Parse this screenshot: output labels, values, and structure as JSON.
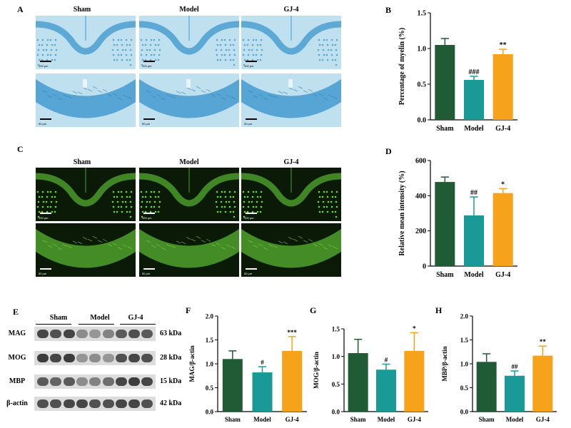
{
  "panels": {
    "A": {
      "letter": "A",
      "columns": [
        "Sham",
        "Model",
        "GJ-4"
      ],
      "scale_top": "100 μm",
      "scale_bottom": "50 μm"
    },
    "C": {
      "letter": "C",
      "columns": [
        "Sham",
        "Model",
        "GJ-4"
      ],
      "scale_top": "100 μm",
      "scale_bottom": "50 μm"
    },
    "E": {
      "letter": "E",
      "groups": [
        "Sham",
        "Model",
        "GJ-4"
      ],
      "rows": [
        {
          "protein": "MAG",
          "kda": "63 kDa"
        },
        {
          "protein": "MOG",
          "kda": "28 kDa"
        },
        {
          "protein": "MBP",
          "kda": "15 kDa"
        },
        {
          "protein": "β-actin",
          "kda": "42 kDa"
        }
      ]
    }
  },
  "colors": {
    "sham": "#1f5c36",
    "model": "#1a9a96",
    "gj4": "#f6a21a",
    "lfb_bg": "#bfe0ee",
    "lfb_tissue": "#4a9fd0",
    "fluor_bg": "#0b1a06",
    "fluor_tissue": "#4a9a2a"
  },
  "chart_data": [
    {
      "panel": "B",
      "type": "bar",
      "categories": [
        "Sham",
        "Model",
        "GJ-4"
      ],
      "values": [
        1.05,
        0.56,
        0.92
      ],
      "errors": [
        0.09,
        0.05,
        0.07
      ],
      "annotations": [
        "",
        "###",
        "**"
      ],
      "ylabel": "Percentage of myelin (%)",
      "ylim": [
        0,
        1.5
      ],
      "yticks": [
        0.0,
        0.5,
        1.0,
        1.5
      ],
      "tick_labels": [
        "0.0",
        "0.5",
        "1.0",
        "1.5"
      ]
    },
    {
      "panel": "D",
      "type": "bar",
      "categories": [
        "Sham",
        "Model",
        "GJ-4"
      ],
      "values": [
        478,
        288,
        415
      ],
      "errors": [
        28,
        105,
        25
      ],
      "annotations": [
        "",
        "##",
        "*"
      ],
      "ylabel": "Relative mean intensity (%)",
      "ylim": [
        0,
        600
      ],
      "yticks": [
        0,
        200,
        400,
        600
      ],
      "tick_labels": [
        "0",
        "200",
        "400",
        "600"
      ]
    },
    {
      "panel": "F",
      "type": "bar",
      "categories": [
        "Sham",
        "Model",
        "GJ-4"
      ],
      "values": [
        1.1,
        0.82,
        1.27
      ],
      "errors": [
        0.17,
        0.12,
        0.3
      ],
      "annotations": [
        "",
        "#",
        "***"
      ],
      "ylabel": "MAG/β-actin",
      "ylim": [
        0,
        2.0
      ],
      "yticks": [
        0.0,
        0.5,
        1.0,
        1.5,
        2.0
      ],
      "tick_labels": [
        "0.0",
        "0.5",
        "1.0",
        "1.5",
        "2.0"
      ]
    },
    {
      "panel": "G",
      "type": "bar",
      "categories": [
        "Sham",
        "Model",
        "GJ-4"
      ],
      "values": [
        1.06,
        0.76,
        1.1
      ],
      "errors": [
        0.25,
        0.1,
        0.33
      ],
      "annotations": [
        "",
        "#",
        "*"
      ],
      "ylabel": "MOG/β-actin",
      "ylim": [
        0,
        1.5
      ],
      "yticks": [
        0.0,
        0.5,
        1.0,
        1.5
      ],
      "tick_labels": [
        "0.0",
        "0.5",
        "1.0",
        "1.5"
      ]
    },
    {
      "panel": "H",
      "type": "bar",
      "categories": [
        "Sham",
        "Model",
        "GJ-4"
      ],
      "values": [
        1.04,
        0.75,
        1.17
      ],
      "errors": [
        0.17,
        0.1,
        0.2
      ],
      "annotations": [
        "",
        "##",
        "**"
      ],
      "ylabel": "MBP/β-actin",
      "ylim": [
        0,
        2.0
      ],
      "yticks": [
        0.0,
        0.5,
        1.0,
        1.5,
        2.0
      ],
      "tick_labels": [
        "0.0",
        "0.5",
        "1.0",
        "1.5",
        "2.0"
      ]
    }
  ]
}
